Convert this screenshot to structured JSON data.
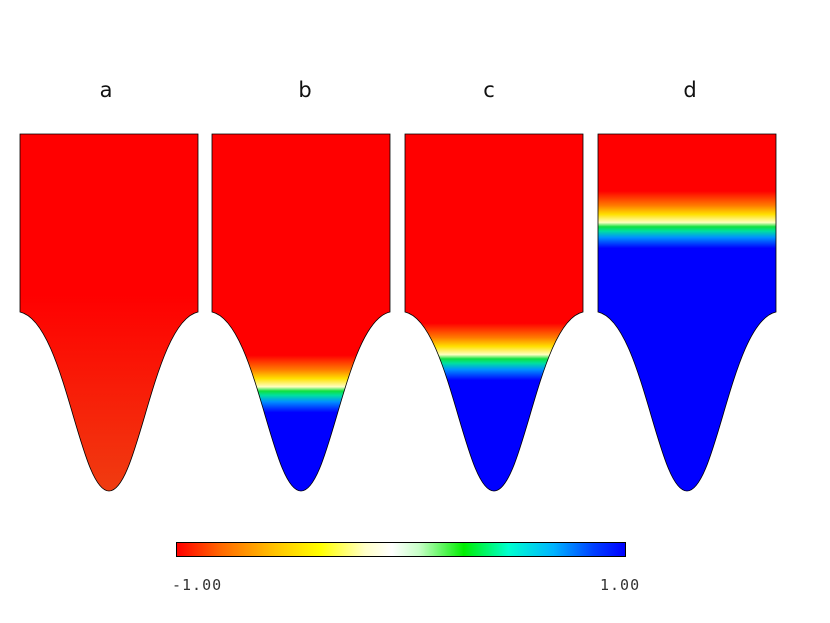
{
  "panels": [
    {
      "label": "a",
      "interface_fraction": null
    },
    {
      "label": "b",
      "interface_fraction": 0.72
    },
    {
      "label": "c",
      "interface_fraction": 0.63
    },
    {
      "label": "d",
      "interface_fraction": 0.26
    }
  ],
  "colorbar": {
    "min_label": "-1.00",
    "max_label": "1.00",
    "low_color": "#ff0000",
    "high_color": "#0000ff"
  }
}
